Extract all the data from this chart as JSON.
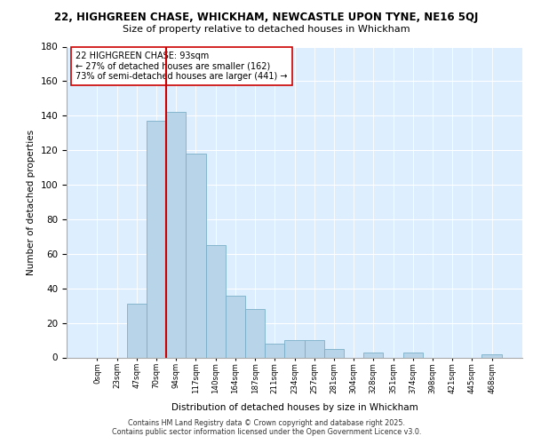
{
  "title_line1": "22, HIGHGREEN CHASE, WHICKHAM, NEWCASTLE UPON TYNE, NE16 5QJ",
  "title_line2": "Size of property relative to detached houses in Whickham",
  "xlabel": "Distribution of detached houses by size in Whickham",
  "ylabel": "Number of detached properties",
  "bin_labels": [
    "0sqm",
    "23sqm",
    "47sqm",
    "70sqm",
    "94sqm",
    "117sqm",
    "140sqm",
    "164sqm",
    "187sqm",
    "211sqm",
    "234sqm",
    "257sqm",
    "281sqm",
    "304sqm",
    "328sqm",
    "351sqm",
    "374sqm",
    "398sqm",
    "421sqm",
    "445sqm",
    "468sqm"
  ],
  "bar_heights": [
    0,
    0,
    31,
    137,
    142,
    118,
    65,
    36,
    28,
    8,
    10,
    10,
    5,
    0,
    3,
    0,
    3,
    0,
    0,
    0,
    2
  ],
  "bar_color": "#b8d4e8",
  "bar_edge_color": "#7aaec8",
  "vline_x_idx": 4,
  "vline_color": "#cc0000",
  "annotation_line1": "22 HIGHGREEN CHASE: 93sqm",
  "annotation_line2": "← 27% of detached houses are smaller (162)",
  "annotation_line3": "73% of semi-detached houses are larger (441) →",
  "annotation_box_color": "#ffffff",
  "annotation_box_edge": "#cc0000",
  "ylim": [
    0,
    180
  ],
  "yticks": [
    0,
    20,
    40,
    60,
    80,
    100,
    120,
    140,
    160,
    180
  ],
  "bg_color": "#ddeeff",
  "footer_line1": "Contains HM Land Registry data © Crown copyright and database right 2025.",
  "footer_line2": "Contains public sector information licensed under the Open Government Licence v3.0."
}
